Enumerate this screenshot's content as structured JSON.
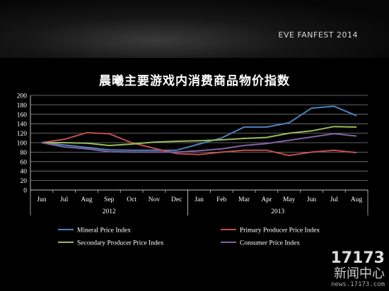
{
  "header": {
    "brand": "EVE FANFEST 2014"
  },
  "chart_data": {
    "type": "line",
    "title": "晨曦主要游戏内消费商品物价指数",
    "categories": [
      "Jun",
      "Jul",
      "Aug",
      "Sep",
      "Oct",
      "Nov",
      "Dec",
      "Jan",
      "Feb",
      "Mar",
      "Apr",
      "May",
      "Jun",
      "Jul",
      "Aug"
    ],
    "year_groups": [
      {
        "label": "2012",
        "start": 0,
        "end": 6
      },
      {
        "label": "2013",
        "start": 7,
        "end": 14
      }
    ],
    "ylim": [
      0,
      200
    ],
    "yticks": [
      0,
      20,
      40,
      60,
      80,
      100,
      120,
      140,
      160,
      180,
      200
    ],
    "grid": true,
    "legend_position": "bottom",
    "series": [
      {
        "name": "Mineral Price Index",
        "color": "#4f81bd",
        "values": [
          100,
          95,
          90,
          85,
          84,
          84,
          84,
          97,
          110,
          133,
          133,
          142,
          173,
          177,
          157
        ]
      },
      {
        "name": "Primary Producer Price Index",
        "color": "#c0504d",
        "values": [
          100,
          107,
          121,
          119,
          100,
          88,
          77,
          75,
          80,
          84,
          84,
          73,
          80,
          84,
          79
        ]
      },
      {
        "name": "Secondary Producer Price Index",
        "color": "#9bbb59",
        "values": [
          100,
          100,
          99,
          94,
          97,
          101,
          103,
          104,
          106,
          109,
          111,
          120,
          125,
          134,
          133
        ]
      },
      {
        "name": "Consumer Price Index",
        "color": "#8064a2",
        "values": [
          100,
          91,
          87,
          81,
          80,
          80,
          80,
          83,
          87,
          94,
          98,
          105,
          112,
          119,
          114
        ]
      }
    ]
  },
  "watermark": {
    "big": "17173",
    "mid": "新闻中心",
    "small": "news.17173.com"
  }
}
